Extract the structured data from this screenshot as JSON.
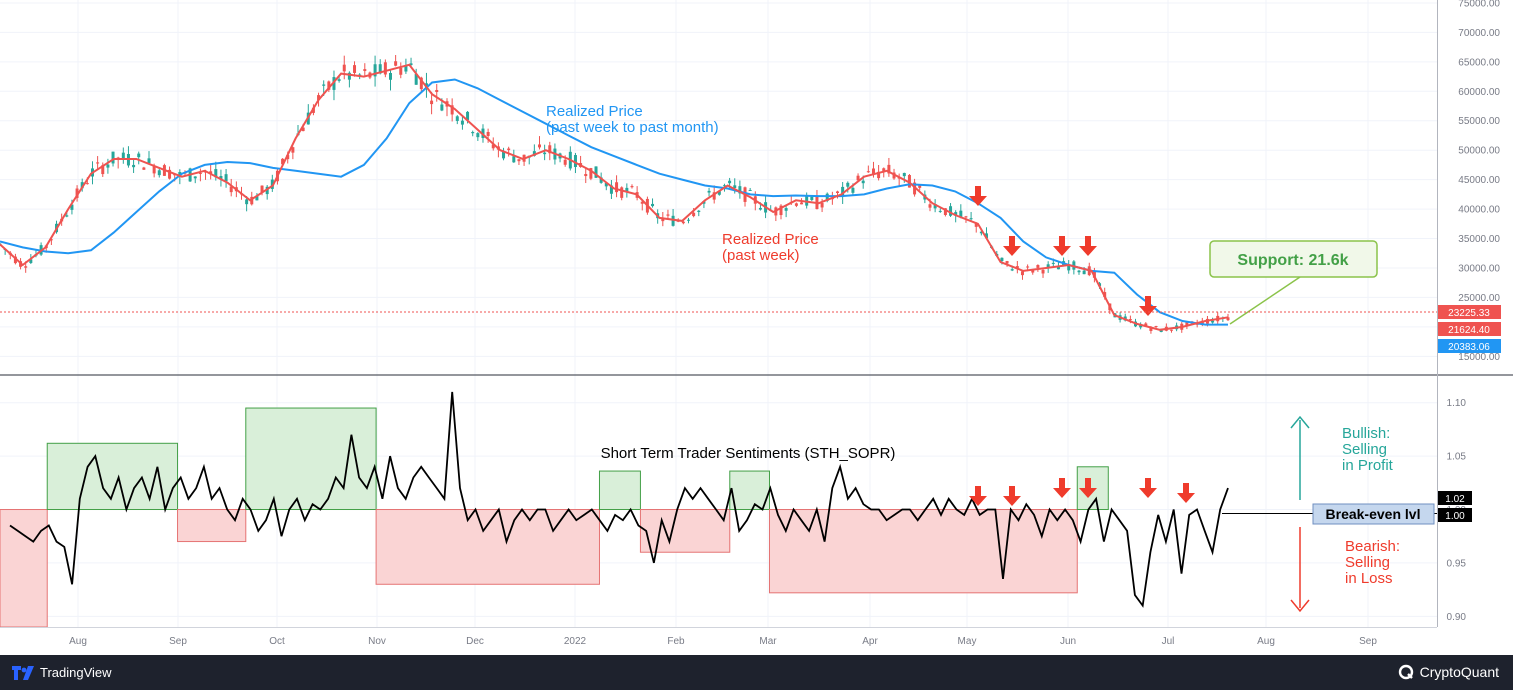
{
  "chart_data": [
    {
      "type": "line",
      "panel": "price",
      "x_ticks": [
        "Aug",
        "Sep",
        "Oct",
        "Nov",
        "Dec",
        "2022",
        "Feb",
        "Mar",
        "Apr",
        "May",
        "Jun",
        "Jul",
        "Aug",
        "Sep"
      ],
      "y_ticks": [
        15000,
        20000,
        25000,
        30000,
        35000,
        40000,
        45000,
        50000,
        55000,
        60000,
        65000,
        70000,
        75000
      ],
      "y_tick_labels": [
        "15000.00",
        "20000.00",
        "25000.00",
        "30000.00",
        "35000.00",
        "40000.00",
        "45000.00",
        "50000.00",
        "55000.00",
        "60000.00",
        "65000.00",
        "70000.00",
        "75000.00"
      ],
      "ylim": [
        12000,
        75500
      ],
      "series": [
        {
          "name": "Realized Price\n(past week to past month)",
          "color": "#2196f3",
          "values": [
            34500,
            33500,
            32800,
            32500,
            33000,
            36000,
            39500,
            43000,
            46000,
            47500,
            48000,
            47800,
            47000,
            46500,
            46000,
            45500,
            47500,
            52000,
            58000,
            61500,
            62000,
            60500,
            58500,
            56500,
            54500,
            52500,
            50500,
            49000,
            47500,
            46000,
            45000,
            44000,
            43500,
            42500,
            42200,
            42300,
            42200,
            42200,
            42500,
            43500,
            44200,
            44000,
            43000,
            41000,
            38500,
            34500,
            31800,
            30500,
            29500,
            29200,
            25500,
            22500,
            21000,
            20383,
            20383
          ]
        },
        {
          "name": "Realized Price\n(past week)",
          "color": "#ef5350",
          "values": [
            34000,
            30500,
            33500,
            40000,
            46000,
            48500,
            48500,
            47000,
            45500,
            46500,
            44500,
            41500,
            44000,
            52000,
            58500,
            63000,
            62500,
            63500,
            64500,
            59500,
            57000,
            53500,
            50000,
            48500,
            50000,
            48500,
            46500,
            43500,
            42500,
            38500,
            38000,
            41500,
            44000,
            42000,
            39500,
            41500,
            41000,
            42500,
            45500,
            46500,
            44500,
            41000,
            39000,
            37500,
            31000,
            29500,
            30000,
            30500,
            29500,
            22000,
            20500,
            19500,
            20000,
            21000,
            21624
          ]
        }
      ],
      "last_values": {
        "price": "23225.33",
        "realized_week": "21624.40",
        "realized_month": "20383.06"
      },
      "annotations": {
        "blue_label_1": "Realized Price",
        "blue_label_2": "(past week to past month)",
        "red_label_1": "Realized Price",
        "red_label_2": "(past week)",
        "support": "Support: 21.6k"
      }
    },
    {
      "type": "line",
      "panel": "sopr",
      "title": "Short Term Trader Sentiments (STH_SOPR)",
      "y_ticks": [
        0.9,
        0.95,
        1.0,
        1.05,
        1.1
      ],
      "y_tick_labels": [
        "0.90",
        "0.95",
        "1.00",
        "1.05",
        "1.10"
      ],
      "ylim": [
        0.89,
        1.125
      ],
      "series": [
        {
          "name": "STH_SOPR",
          "color": "#000000",
          "values": [
            0.985,
            0.98,
            0.975,
            0.97,
            0.98,
            0.985,
            0.97,
            0.965,
            0.93,
            1.01,
            1.04,
            1.05,
            1.02,
            1.01,
            1.03,
            1.0,
            1.02,
            1.03,
            1.01,
            1.04,
            1.0,
            1.02,
            1.03,
            1.01,
            1.02,
            1.04,
            1.01,
            1.02,
            1.0,
            0.99,
            1.01,
            1.0,
            0.98,
            0.99,
            1.01,
            0.975,
            1.0,
            1.01,
            0.99,
            1.005,
            1.0,
            1.01,
            1.03,
            1.02,
            1.07,
            1.03,
            1.02,
            1.04,
            1.01,
            1.05,
            1.02,
            1.01,
            1.03,
            1.04,
            1.03,
            1.02,
            1.01,
            1.11,
            1.02,
            0.99,
            1.0,
            0.98,
            0.99,
            1.0,
            0.97,
            0.99,
            1.0,
            0.99,
            1.0,
            1.0,
            0.98,
            0.99,
            1.0,
            0.99,
            0.995,
            1.0,
            0.99,
            0.98,
            0.995,
            0.99,
            1.0,
            0.985,
            0.98,
            0.95,
            0.99,
            0.97,
            1.0,
            1.02,
            1.01,
            1.02,
            1.01,
            1.0,
            0.99,
            1.02,
            0.98,
            0.99,
            1.005,
            1.0,
            1.02,
            0.995,
            0.98,
            1.0,
            0.99,
            0.98,
            1.0,
            0.97,
            1.02,
            1.04,
            1.01,
            1.02,
            1.005,
            1.0,
            1.0,
            0.99,
            0.995,
            1.0,
            1.0,
            0.99,
            1.0,
            1.01,
            0.995,
            1.01,
            1.0,
            0.995,
            1.01,
            0.995,
            1.0,
            1.0,
            0.935,
            1.0,
            0.99,
            1.005,
            0.995,
            0.975,
            1.0,
            0.99,
            1.0,
            0.99,
            0.97,
            1.0,
            1.01,
            0.97,
            1.0,
            0.99,
            0.98,
            0.92,
            0.91,
            0.96,
            0.995,
            0.97,
            1.0,
            0.94,
            0.995,
            1.0,
            0.98,
            0.96,
            1.0,
            1.02
          ]
        }
      ],
      "rect_regions": [
        {
          "x0": 0.0,
          "x1": 0.03,
          "y0": 0.89,
          "y1": 1.0,
          "kind": "loss"
        },
        {
          "x0": 0.03,
          "x1": 0.135,
          "y0": 1.0,
          "y1": 1.062,
          "kind": "profit"
        },
        {
          "x0": 0.135,
          "x1": 0.19,
          "y0": 0.97,
          "y1": 1.0,
          "kind": "loss"
        },
        {
          "x0": 0.19,
          "x1": 0.295,
          "y0": 1.0,
          "y1": 1.095,
          "kind": "profit"
        },
        {
          "x0": 0.295,
          "x1": 0.475,
          "y0": 0.93,
          "y1": 1.0,
          "kind": "loss"
        },
        {
          "x0": 0.475,
          "x1": 0.508,
          "y0": 1.0,
          "y1": 1.036,
          "kind": "profit"
        },
        {
          "x0": 0.508,
          "x1": 0.58,
          "y0": 0.96,
          "y1": 1.0,
          "kind": "loss"
        },
        {
          "x0": 0.58,
          "x1": 0.612,
          "y0": 1.0,
          "y1": 1.036,
          "kind": "profit"
        },
        {
          "x0": 0.612,
          "x1": 0.86,
          "y0": 0.922,
          "y1": 1.0,
          "kind": "loss"
        },
        {
          "x0": 0.86,
          "x1": 0.885,
          "y0": 1.0,
          "y1": 1.04,
          "kind": "profit"
        }
      ],
      "last_value": "1.02",
      "break_even_value": "1.00",
      "annotations": {
        "bullish_1": "Bullish:",
        "bullish_2": "Selling",
        "bullish_3": "in Profit",
        "bearish_1": "Bearish:",
        "bearish_2": "Selling",
        "bearish_3": "in Loss",
        "break_even": "Break-even lvl"
      }
    }
  ],
  "colors": {
    "profit_fill": "#d9efd9",
    "profit_stroke": "#43a047",
    "loss_fill": "#fad4d4",
    "loss_stroke": "#e57373",
    "arrow": "#ef3b2c",
    "teal": "#26a69a"
  },
  "footer": {
    "left_brand": "TradingView",
    "right_brand": "CryptoQuant"
  }
}
